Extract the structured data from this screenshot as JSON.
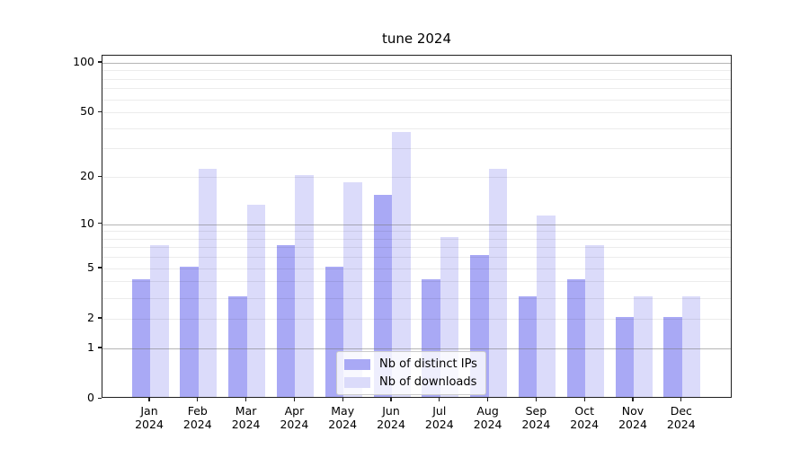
{
  "chart_data": {
    "type": "bar",
    "title": "tune 2024",
    "categories": [
      "Jan 2024",
      "Feb 2024",
      "Mar 2024",
      "Apr 2024",
      "May 2024",
      "Jun 2024",
      "Jul 2024",
      "Aug 2024",
      "Sep 2024",
      "Oct 2024",
      "Nov 2024",
      "Dec 2024"
    ],
    "series": [
      {
        "name": "Nb of distinct IPs",
        "color": "#a9a9f5",
        "values": [
          4,
          5,
          3,
          7,
          5,
          15,
          4,
          6,
          3,
          4,
          2,
          2
        ]
      },
      {
        "name": "Nb of downloads",
        "color": "#dbdbfa",
        "values": [
          7,
          22,
          13,
          20,
          18,
          37,
          8,
          22,
          11,
          7,
          3,
          3
        ]
      }
    ],
    "xlabel": "",
    "ylabel": "",
    "y_scale": "log10(1+y)",
    "ylim": [
      0,
      110
    ],
    "y_tick_values": [
      0,
      1,
      2,
      5,
      10,
      20,
      50,
      100
    ],
    "y_major_gridlines": [
      1,
      10,
      100
    ],
    "y_minor_gridlines": [
      2,
      3,
      4,
      5,
      6,
      7,
      8,
      9,
      20,
      30,
      40,
      50,
      60,
      70,
      80,
      90
    ],
    "grid": true,
    "legend_position": "lower center",
    "background_color": "#ffffff"
  }
}
